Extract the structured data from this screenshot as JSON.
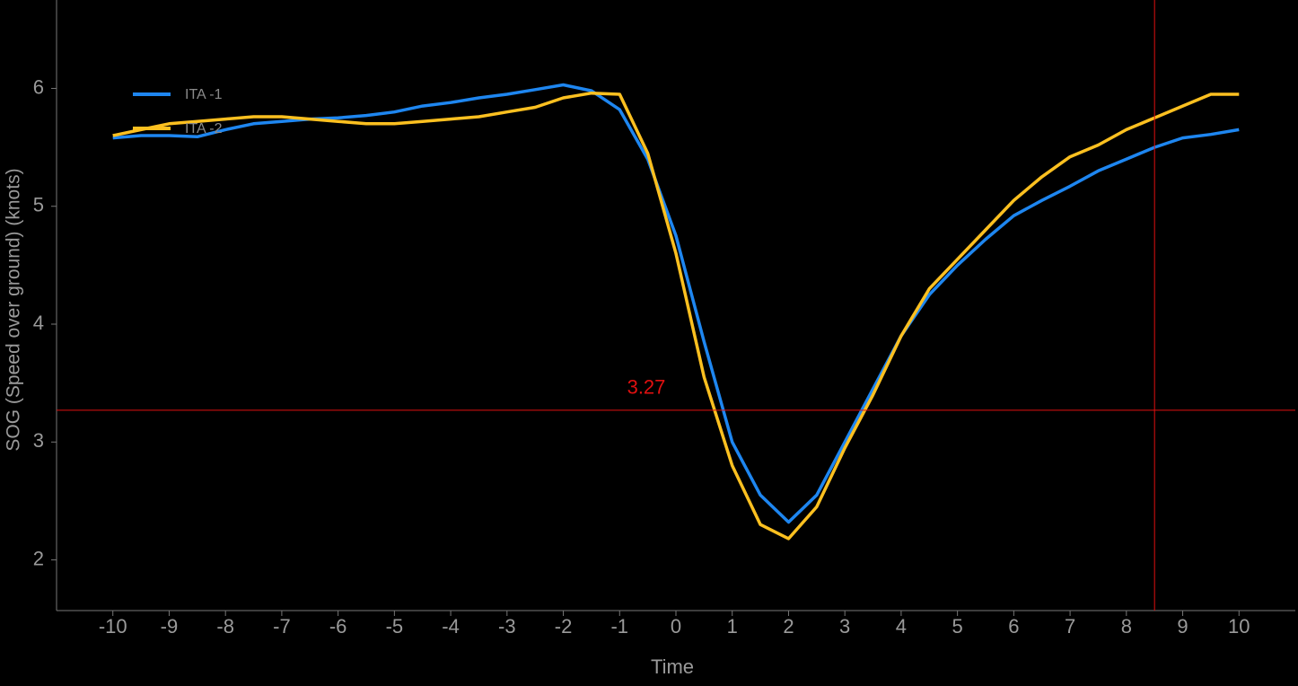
{
  "chart_data": {
    "type": "line",
    "x_label": "Time",
    "y_label": "SOG (Speed over ground)  (knots)",
    "x": [
      -10,
      -9.5,
      -9,
      -8.5,
      -8,
      -7.5,
      -7,
      -6.5,
      -6,
      -5.5,
      -5,
      -4.5,
      -4,
      -3.5,
      -3,
      -2.5,
      -2,
      -1.5,
      -1,
      -0.5,
      0,
      0.5,
      1,
      1.5,
      2,
      2.5,
      3,
      3.5,
      4,
      4.5,
      5,
      5.5,
      6,
      6.5,
      7,
      7.5,
      8,
      8.5,
      9,
      9.5,
      10
    ],
    "series": [
      {
        "name": "ITA -1",
        "color": "#1e86f0",
        "values": [
          5.58,
          5.6,
          5.6,
          5.59,
          5.65,
          5.7,
          5.72,
          5.74,
          5.75,
          5.77,
          5.8,
          5.85,
          5.88,
          5.92,
          5.95,
          5.99,
          6.03,
          5.98,
          5.82,
          5.4,
          4.75,
          3.85,
          3.0,
          2.55,
          2.32,
          2.55,
          3.0,
          3.45,
          3.9,
          4.25,
          4.5,
          4.72,
          4.92,
          5.05,
          5.17,
          5.3,
          5.4,
          5.5,
          5.58,
          5.61,
          5.65
        ]
      },
      {
        "name": "ITA -2",
        "color": "#fcc020",
        "values": [
          5.6,
          5.65,
          5.7,
          5.72,
          5.74,
          5.76,
          5.76,
          5.74,
          5.72,
          5.7,
          5.7,
          5.72,
          5.74,
          5.76,
          5.8,
          5.84,
          5.92,
          5.96,
          5.95,
          5.45,
          4.6,
          3.55,
          2.8,
          2.3,
          2.18,
          2.45,
          2.95,
          3.4,
          3.9,
          4.3,
          4.55,
          4.8,
          5.05,
          5.25,
          5.42,
          5.52,
          5.65,
          5.75,
          5.85,
          5.95,
          5.95
        ]
      }
    ],
    "xlim": [
      -11,
      11
    ],
    "ylim": [
      1.57,
      6.75
    ],
    "xticks": [
      -10,
      -9,
      -8,
      -7,
      -6,
      -5,
      -4,
      -3,
      -2,
      -1,
      0,
      1,
      2,
      3,
      4,
      5,
      6,
      7,
      8,
      9,
      10
    ],
    "yticks": [
      2,
      3,
      4,
      5,
      6
    ],
    "crosshair": {
      "x": 8.5,
      "y": 3.27,
      "color": "#e01010"
    },
    "legend": "upper left"
  }
}
